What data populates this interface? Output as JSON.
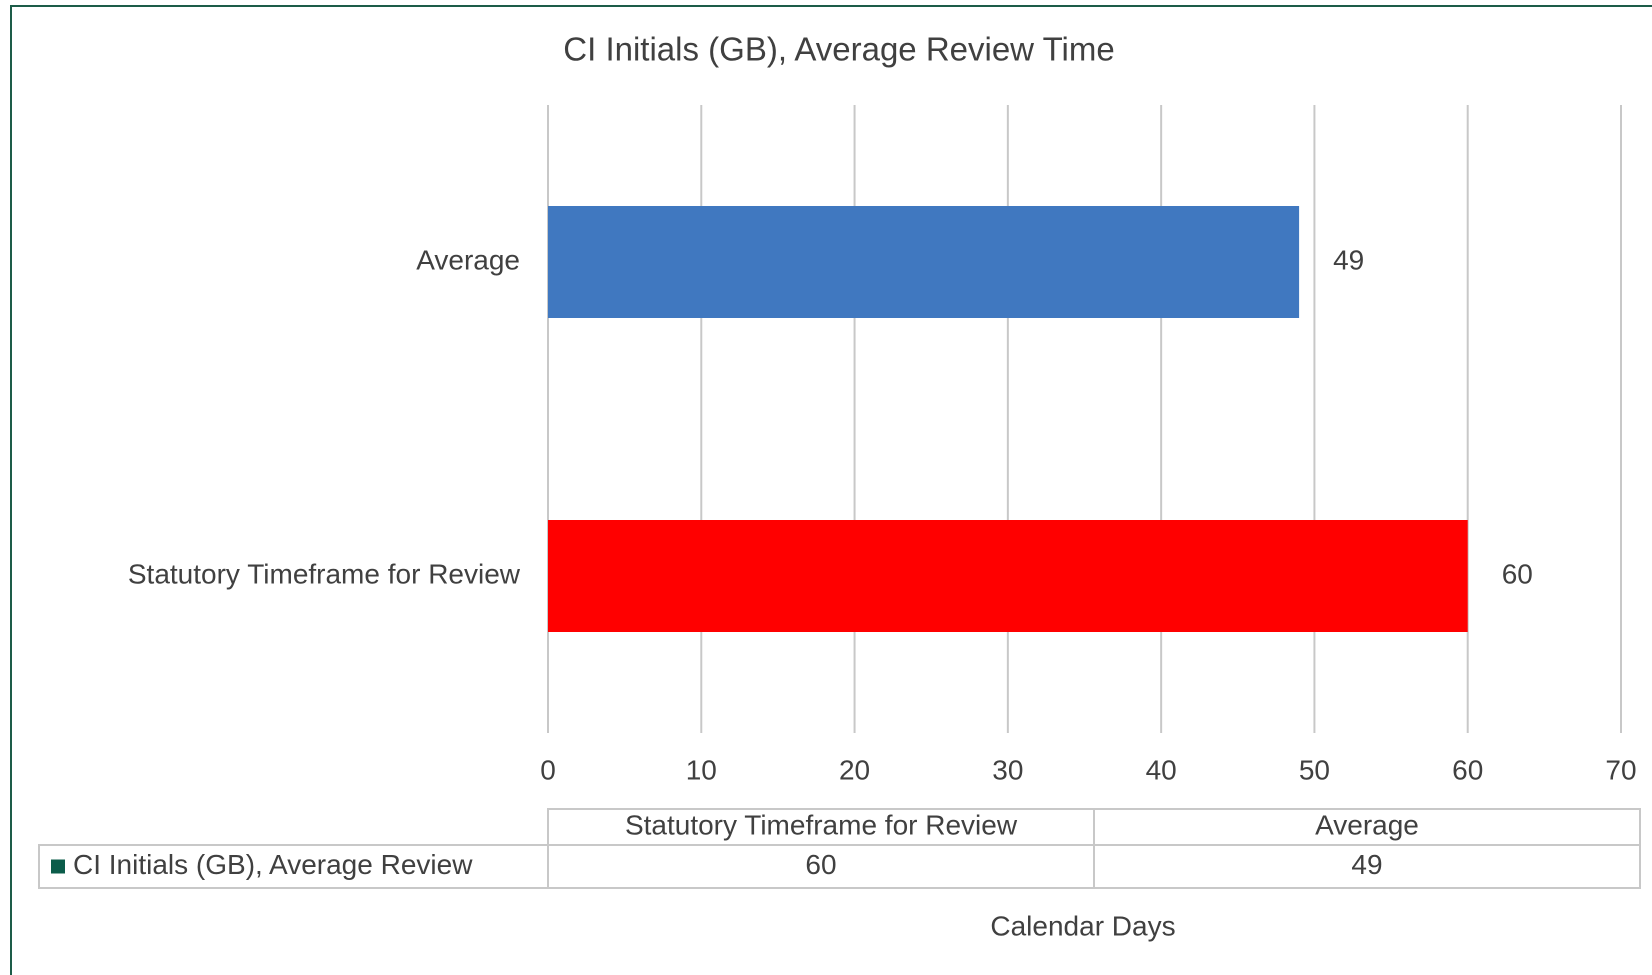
{
  "chart_data": {
    "type": "bar",
    "orientation": "horizontal",
    "title": "CI Initials (GB), Average Review Time",
    "xlabel": "Calendar Days",
    "categories": [
      "Statutory Timeframe for Review",
      "Average"
    ],
    "series": [
      {
        "name": "CI Initials (GB), Average Review",
        "color": "#0b5c4a",
        "values": [
          60,
          49
        ]
      }
    ],
    "bar_colors": [
      "#ff0000",
      "#4078c0"
    ],
    "xlim": [
      0,
      70
    ],
    "xticks": [
      0,
      10,
      20,
      30,
      40,
      50,
      60,
      70
    ],
    "grid": true,
    "data_table": true
  }
}
